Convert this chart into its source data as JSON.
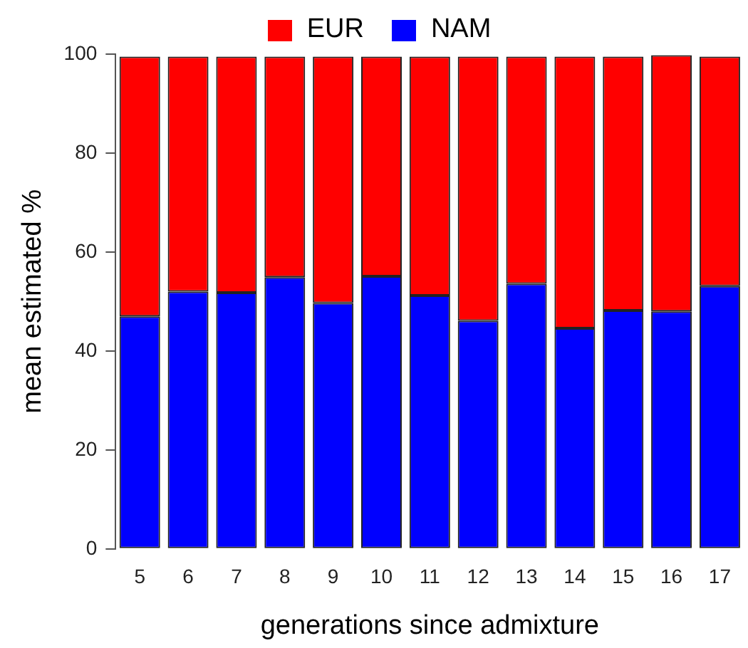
{
  "chart_data": {
    "type": "bar",
    "stacked": true,
    "xlabel": "generations since admixture",
    "ylabel": "mean estimated %",
    "categories": [
      "5",
      "6",
      "7",
      "8",
      "9",
      "10",
      "11",
      "12",
      "13",
      "14",
      "15",
      "16",
      "17"
    ],
    "series": [
      {
        "name": "NAM",
        "color": "#0000ff",
        "values": [
          47.0,
          52.0,
          51.8,
          54.9,
          49.7,
          55.1,
          51.2,
          46.1,
          53.6,
          44.6,
          48.2,
          48.0,
          53.1
        ]
      },
      {
        "name": "EUR",
        "color": "#ff0000",
        "values": [
          52.5,
          47.5,
          47.7,
          44.6,
          49.8,
          44.4,
          48.3,
          53.4,
          45.9,
          54.9,
          51.3,
          51.8,
          46.4
        ]
      }
    ],
    "ylim": [
      0,
      100
    ],
    "yticks": [
      0,
      20,
      40,
      60,
      80,
      100
    ],
    "grid": false,
    "legend": "top"
  }
}
